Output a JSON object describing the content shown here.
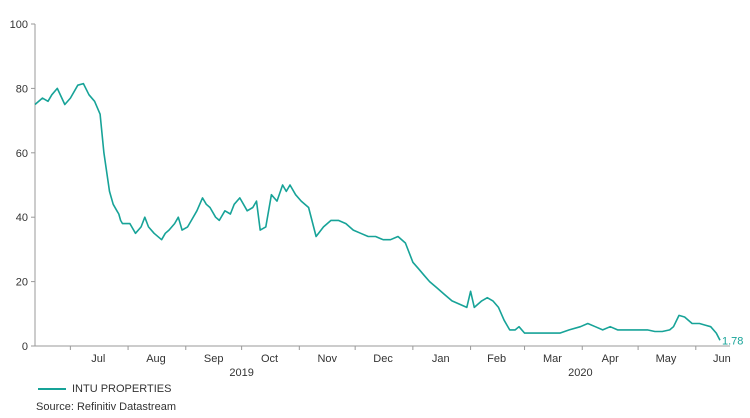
{
  "chart_data": {
    "type": "line",
    "ylim": [
      0,
      100
    ],
    "yticks": [
      "0",
      "20",
      "40",
      "60",
      "80",
      "100"
    ],
    "months": [
      "Jul",
      "Aug",
      "Sep",
      "Oct",
      "Nov",
      "Dec",
      "Jan",
      "Feb",
      "Mar",
      "Apr",
      "May",
      "Jun"
    ],
    "years": [
      "2019",
      "2020"
    ],
    "series": [
      {
        "name": "INTU PROPERTIES",
        "color": "#17a398",
        "end_label": "1.78",
        "x": [
          "2019-06-12",
          "2019-06-16",
          "2019-06-19",
          "2019-06-21",
          "2019-06-24",
          "2019-06-28",
          "2019-07-01",
          "2019-07-05",
          "2019-07-08",
          "2019-07-11",
          "2019-07-14",
          "2019-07-17",
          "2019-07-19",
          "2019-07-22",
          "2019-07-24",
          "2019-07-26",
          "2019-07-27",
          "2019-07-28",
          "2019-07-29",
          "2019-08-02",
          "2019-08-05",
          "2019-08-08",
          "2019-08-10",
          "2019-08-12",
          "2019-08-15",
          "2019-08-19",
          "2019-08-21",
          "2019-08-23",
          "2019-08-26",
          "2019-08-28",
          "2019-08-30",
          "2019-09-02",
          "2019-09-04",
          "2019-09-07",
          "2019-09-10",
          "2019-09-12",
          "2019-09-14",
          "2019-09-17",
          "2019-09-19",
          "2019-09-22",
          "2019-09-25",
          "2019-09-27",
          "2019-09-30",
          "2019-10-02",
          "2019-10-04",
          "2019-10-07",
          "2019-10-09",
          "2019-10-11",
          "2019-10-14",
          "2019-10-17",
          "2019-10-20",
          "2019-10-23",
          "2019-10-25",
          "2019-10-27",
          "2019-10-30",
          "2019-11-02",
          "2019-11-06",
          "2019-11-10",
          "2019-11-14",
          "2019-11-18",
          "2019-11-22",
          "2019-11-26",
          "2019-11-30",
          "2019-12-04",
          "2019-12-08",
          "2019-12-12",
          "2019-12-16",
          "2019-12-20",
          "2019-12-24",
          "2019-12-28",
          "2020-01-01",
          "2020-01-04",
          "2020-01-07",
          "2020-01-10",
          "2020-01-14",
          "2020-01-18",
          "2020-01-22",
          "2020-01-26",
          "2020-01-30",
          "2020-02-01",
          "2020-02-03",
          "2020-02-05",
          "2020-02-07",
          "2020-02-10",
          "2020-02-13",
          "2020-02-16",
          "2020-02-19",
          "2020-02-22",
          "2020-02-25",
          "2020-02-27",
          "2020-03-01",
          "2020-03-05",
          "2020-03-10",
          "2020-03-15",
          "2020-03-20",
          "2020-03-25",
          "2020-03-31",
          "2020-04-04",
          "2020-04-08",
          "2020-04-12",
          "2020-04-16",
          "2020-04-20",
          "2020-04-25",
          "2020-05-01",
          "2020-05-06",
          "2020-05-10",
          "2020-05-14",
          "2020-05-18",
          "2020-05-20",
          "2020-05-23",
          "2020-05-26",
          "2020-05-30",
          "2020-06-03",
          "2020-06-06",
          "2020-06-09",
          "2020-06-12",
          "2020-06-14"
        ],
        "values": [
          75,
          77,
          76,
          78,
          80,
          75,
          77,
          81,
          81.5,
          78,
          76,
          72,
          60,
          48,
          44,
          42,
          41,
          39,
          38,
          38,
          35,
          37,
          40,
          37,
          35,
          33,
          35,
          36,
          38,
          40,
          36,
          37,
          39,
          42,
          46,
          44,
          43,
          40,
          39,
          42,
          41,
          44,
          46,
          44,
          42,
          43,
          45,
          36,
          37,
          47,
          45,
          50,
          48,
          50,
          47,
          45,
          43,
          34,
          37,
          39,
          39,
          38,
          36,
          35,
          34,
          34,
          33,
          33,
          34,
          32,
          26,
          24,
          22,
          20,
          18,
          16,
          14,
          13,
          12,
          17,
          12,
          13,
          14,
          15,
          14,
          12,
          8,
          5,
          5,
          6,
          4,
          4,
          4,
          4,
          4,
          5,
          6,
          7,
          6,
          5,
          6,
          5,
          5,
          5,
          5,
          4.5,
          4.5,
          5,
          6,
          9.5,
          9,
          7,
          7,
          6.5,
          6,
          4,
          1.78
        ]
      }
    ]
  },
  "source": "Source: Refinitiv Datastream"
}
